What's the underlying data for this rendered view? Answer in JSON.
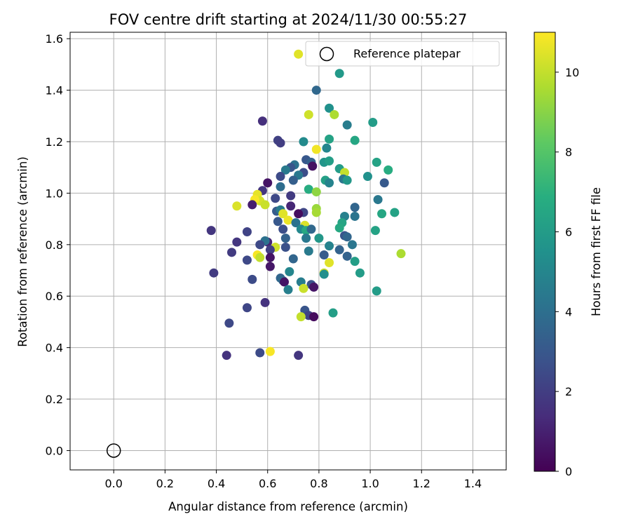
{
  "chart_data": {
    "type": "scatter",
    "title": "FOV centre drift starting at 2024/11/30 00:55:27",
    "xlabel": "Angular distance from reference (arcmin)",
    "ylabel": "Rotation from reference (arcmin)",
    "xlim": [
      -0.17,
      1.53
    ],
    "ylim": [
      -0.075,
      1.625
    ],
    "xticks": [
      "0.0",
      "0.2",
      "0.4",
      "0.6",
      "0.8",
      "1.0",
      "1.2",
      "1.4"
    ],
    "yticks": [
      "0.0",
      "0.2",
      "0.4",
      "0.6",
      "0.8",
      "1.0",
      "1.2",
      "1.4",
      "1.6"
    ],
    "grid": true,
    "legend_position": "top-right",
    "legend_entries": [
      "Reference platepar"
    ],
    "reference_point": {
      "name": "Reference platepar",
      "x": 0.0,
      "y": 0.0
    },
    "colorbar": {
      "label": "Hours from first FF file",
      "colormap": "viridis",
      "range": [
        0,
        11
      ],
      "ticks": [
        "0",
        "2",
        "4",
        "6",
        "8",
        "10"
      ]
    },
    "series": [
      {
        "points": [
          [
            0.72,
            1.54,
            10.5
          ],
          [
            0.88,
            1.465,
            5.9
          ],
          [
            0.79,
            1.4,
            3.7
          ],
          [
            0.84,
            1.33,
            5.5
          ],
          [
            0.76,
            1.305,
            10.2
          ],
          [
            0.86,
            1.305,
            9.6
          ],
          [
            0.58,
            1.28,
            1.5
          ],
          [
            1.01,
            1.275,
            6.0
          ],
          [
            0.91,
            1.265,
            4.6
          ],
          [
            0.64,
            1.205,
            2.1
          ],
          [
            0.65,
            1.195,
            2.0
          ],
          [
            0.74,
            1.2,
            5.2
          ],
          [
            0.84,
            1.21,
            6.3
          ],
          [
            0.94,
            1.205,
            6.5
          ],
          [
            0.79,
            1.17,
            10.8
          ],
          [
            0.83,
            1.175,
            5.0
          ],
          [
            0.75,
            1.13,
            3.0
          ],
          [
            0.77,
            1.12,
            3.4
          ],
          [
            0.82,
            1.12,
            5.7
          ],
          [
            0.84,
            1.125,
            6.1
          ],
          [
            1.025,
            1.12,
            6.3
          ],
          [
            0.705,
            1.11,
            4.1
          ],
          [
            0.775,
            1.105,
            0.5
          ],
          [
            0.69,
            1.1,
            2.9
          ],
          [
            0.74,
            1.08,
            2.6
          ],
          [
            0.88,
            1.095,
            6.0
          ],
          [
            0.67,
            1.09,
            4.5
          ],
          [
            1.07,
            1.09,
            6.8
          ],
          [
            0.65,
            1.065,
            2.5
          ],
          [
            0.72,
            1.07,
            4.4
          ],
          [
            0.825,
            1.05,
            6.2
          ],
          [
            0.9,
            1.08,
            10.0
          ],
          [
            0.99,
            1.065,
            5.5
          ],
          [
            0.895,
            1.055,
            4.3
          ],
          [
            0.91,
            1.05,
            5.8
          ],
          [
            0.6,
            1.04,
            0.6
          ],
          [
            0.7,
            1.05,
            3.3
          ],
          [
            0.84,
            1.04,
            4.9
          ],
          [
            1.055,
            1.04,
            3.1
          ],
          [
            0.65,
            1.025,
            3.9
          ],
          [
            0.58,
            1.01,
            1.7
          ],
          [
            0.76,
            1.015,
            6.8
          ],
          [
            0.79,
            1.005,
            9.1
          ],
          [
            0.56,
            0.995,
            10.6
          ],
          [
            0.57,
            0.97,
            10.3
          ],
          [
            0.55,
            0.975,
            10.9
          ],
          [
            0.63,
            0.98,
            2.4
          ],
          [
            0.69,
            0.99,
            1.9
          ],
          [
            1.03,
            0.975,
            4.4
          ],
          [
            0.48,
            0.95,
            10.4
          ],
          [
            0.54,
            0.955,
            0.9
          ],
          [
            0.59,
            0.955,
            10.1
          ],
          [
            0.69,
            0.95,
            1.2
          ],
          [
            0.79,
            0.94,
            9.3
          ],
          [
            0.94,
            0.945,
            3.6
          ],
          [
            0.635,
            0.93,
            3.2
          ],
          [
            0.65,
            0.935,
            4.5
          ],
          [
            1.045,
            0.92,
            6.5
          ],
          [
            1.095,
            0.925,
            6.3
          ],
          [
            0.74,
            0.925,
            2.3
          ],
          [
            0.79,
            0.925,
            9.5
          ],
          [
            0.72,
            0.92,
            0.4
          ],
          [
            0.66,
            0.92,
            10.5
          ],
          [
            0.9,
            0.91,
            4.8
          ],
          [
            0.94,
            0.91,
            4.2
          ],
          [
            0.68,
            0.895,
            10.7
          ],
          [
            0.64,
            0.89,
            3.0
          ],
          [
            0.71,
            0.885,
            4.1
          ],
          [
            0.745,
            0.875,
            10.4
          ],
          [
            0.89,
            0.885,
            6.4
          ],
          [
            0.88,
            0.865,
            6.6
          ],
          [
            0.38,
            0.855,
            1.7
          ],
          [
            0.52,
            0.85,
            2.2
          ],
          [
            0.66,
            0.86,
            2.6
          ],
          [
            0.73,
            0.86,
            5.1
          ],
          [
            0.75,
            0.855,
            6.6
          ],
          [
            0.77,
            0.86,
            3.7
          ],
          [
            1.02,
            0.855,
            6.3
          ],
          [
            0.8,
            0.825,
            5.8
          ],
          [
            0.75,
            0.825,
            4.4
          ],
          [
            0.67,
            0.825,
            3.4
          ],
          [
            0.6,
            0.81,
            1.1
          ],
          [
            0.59,
            0.815,
            4.1
          ],
          [
            0.48,
            0.81,
            1.7
          ],
          [
            0.9,
            0.835,
            2.9
          ],
          [
            0.91,
            0.83,
            3.6
          ],
          [
            0.57,
            0.8,
            2.4
          ],
          [
            0.63,
            0.79,
            10.2
          ],
          [
            0.61,
            0.78,
            2.0
          ],
          [
            0.67,
            0.79,
            2.7
          ],
          [
            0.84,
            0.795,
            4.9
          ],
          [
            0.88,
            0.78,
            3.5
          ],
          [
            0.93,
            0.8,
            4.3
          ],
          [
            0.46,
            0.77,
            1.9
          ],
          [
            0.56,
            0.76,
            10.9
          ],
          [
            0.57,
            0.75,
            10.0
          ],
          [
            0.61,
            0.75,
            0.6
          ],
          [
            0.7,
            0.745,
            3.6
          ],
          [
            0.76,
            0.775,
            4.5
          ],
          [
            0.82,
            0.76,
            3.2
          ],
          [
            0.91,
            0.755,
            3.5
          ],
          [
            0.94,
            0.735,
            6.1
          ],
          [
            1.12,
            0.765,
            9.6
          ],
          [
            0.52,
            0.74,
            2.4
          ],
          [
            0.61,
            0.715,
            0.7
          ],
          [
            0.84,
            0.73,
            10.5
          ],
          [
            0.39,
            0.69,
            1.9
          ],
          [
            0.685,
            0.695,
            5.0
          ],
          [
            0.82,
            0.69,
            10.3
          ],
          [
            0.82,
            0.685,
            5.4
          ],
          [
            0.96,
            0.69,
            6.0
          ],
          [
            0.54,
            0.665,
            2.5
          ],
          [
            0.65,
            0.67,
            3.6
          ],
          [
            0.66,
            0.66,
            3.9
          ],
          [
            0.665,
            0.655,
            0.6
          ],
          [
            0.73,
            0.655,
            4.6
          ],
          [
            0.77,
            0.645,
            2.8
          ],
          [
            0.78,
            0.635,
            0.6
          ],
          [
            0.68,
            0.625,
            4.7
          ],
          [
            0.74,
            0.63,
            10.1
          ],
          [
            1.025,
            0.62,
            6.0
          ],
          [
            0.59,
            0.575,
            1.6
          ],
          [
            0.745,
            0.545,
            2.9
          ],
          [
            0.52,
            0.555,
            2.3
          ],
          [
            0.76,
            0.525,
            2.2
          ],
          [
            0.73,
            0.52,
            10.0
          ],
          [
            0.855,
            0.535,
            6.1
          ],
          [
            0.78,
            0.52,
            0.3
          ],
          [
            0.45,
            0.495,
            2.4
          ],
          [
            0.61,
            0.385,
            10.9
          ],
          [
            0.57,
            0.38,
            2.5
          ],
          [
            0.72,
            0.37,
            1.7
          ],
          [
            0.44,
            0.37,
            1.6
          ]
        ]
      }
    ]
  }
}
